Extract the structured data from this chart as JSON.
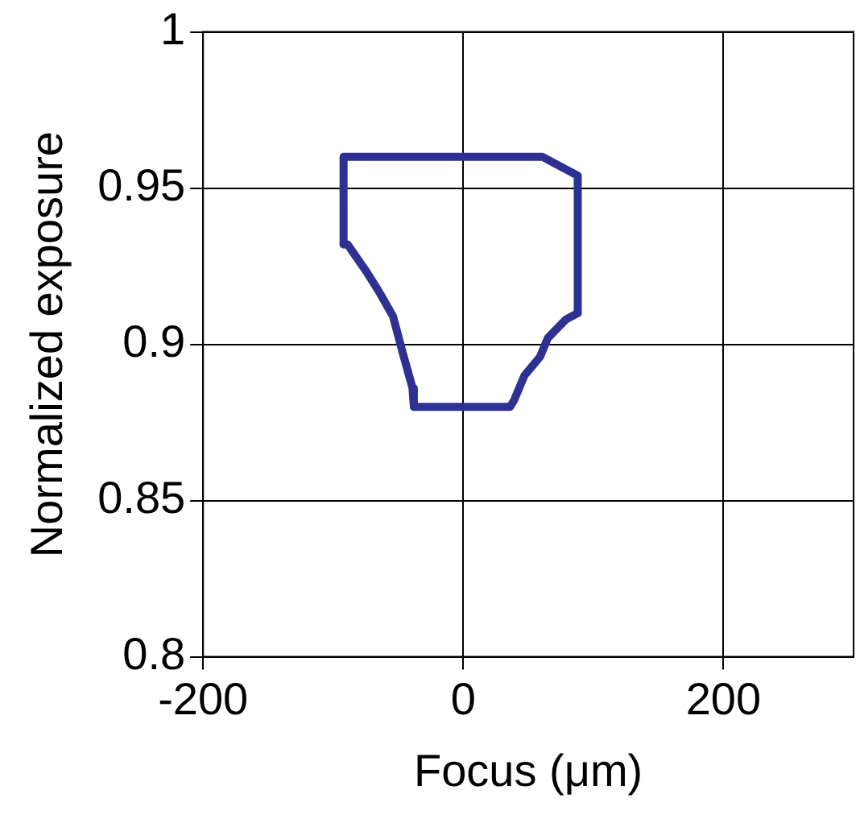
{
  "chart_data": {
    "type": "line",
    "xlabel": "Focus (μm)",
    "ylabel": "Normalized exposure",
    "xlim": [
      -200,
      300
    ],
    "xticks": [
      -200,
      0,
      200
    ],
    "ylim": [
      0.8,
      1
    ],
    "yticks": [
      1,
      0.95,
      0.9,
      0.85,
      0.8
    ],
    "grid": true,
    "marker": "none",
    "line_style": "solid",
    "series": [
      {
        "color": "#2e3192",
        "x": [
          -92,
          -92,
          61,
          79,
          88,
          88
        ],
        "values": [
          0.932,
          0.96,
          0.96,
          0.956,
          0.954,
          0.91
        ]
      },
      {
        "color": "#2e3192",
        "x": [
          -92,
          -89,
          -74,
          -65,
          -54,
          -47,
          -39,
          -38,
          36,
          39,
          47,
          59,
          65,
          79,
          88
        ],
        "values": [
          0.932,
          0.932,
          0.923,
          0.917,
          0.909,
          0.898,
          0.886,
          0.88,
          0.88,
          0.882,
          0.89,
          0.896,
          0.902,
          0.908,
          0.91
        ]
      }
    ]
  }
}
